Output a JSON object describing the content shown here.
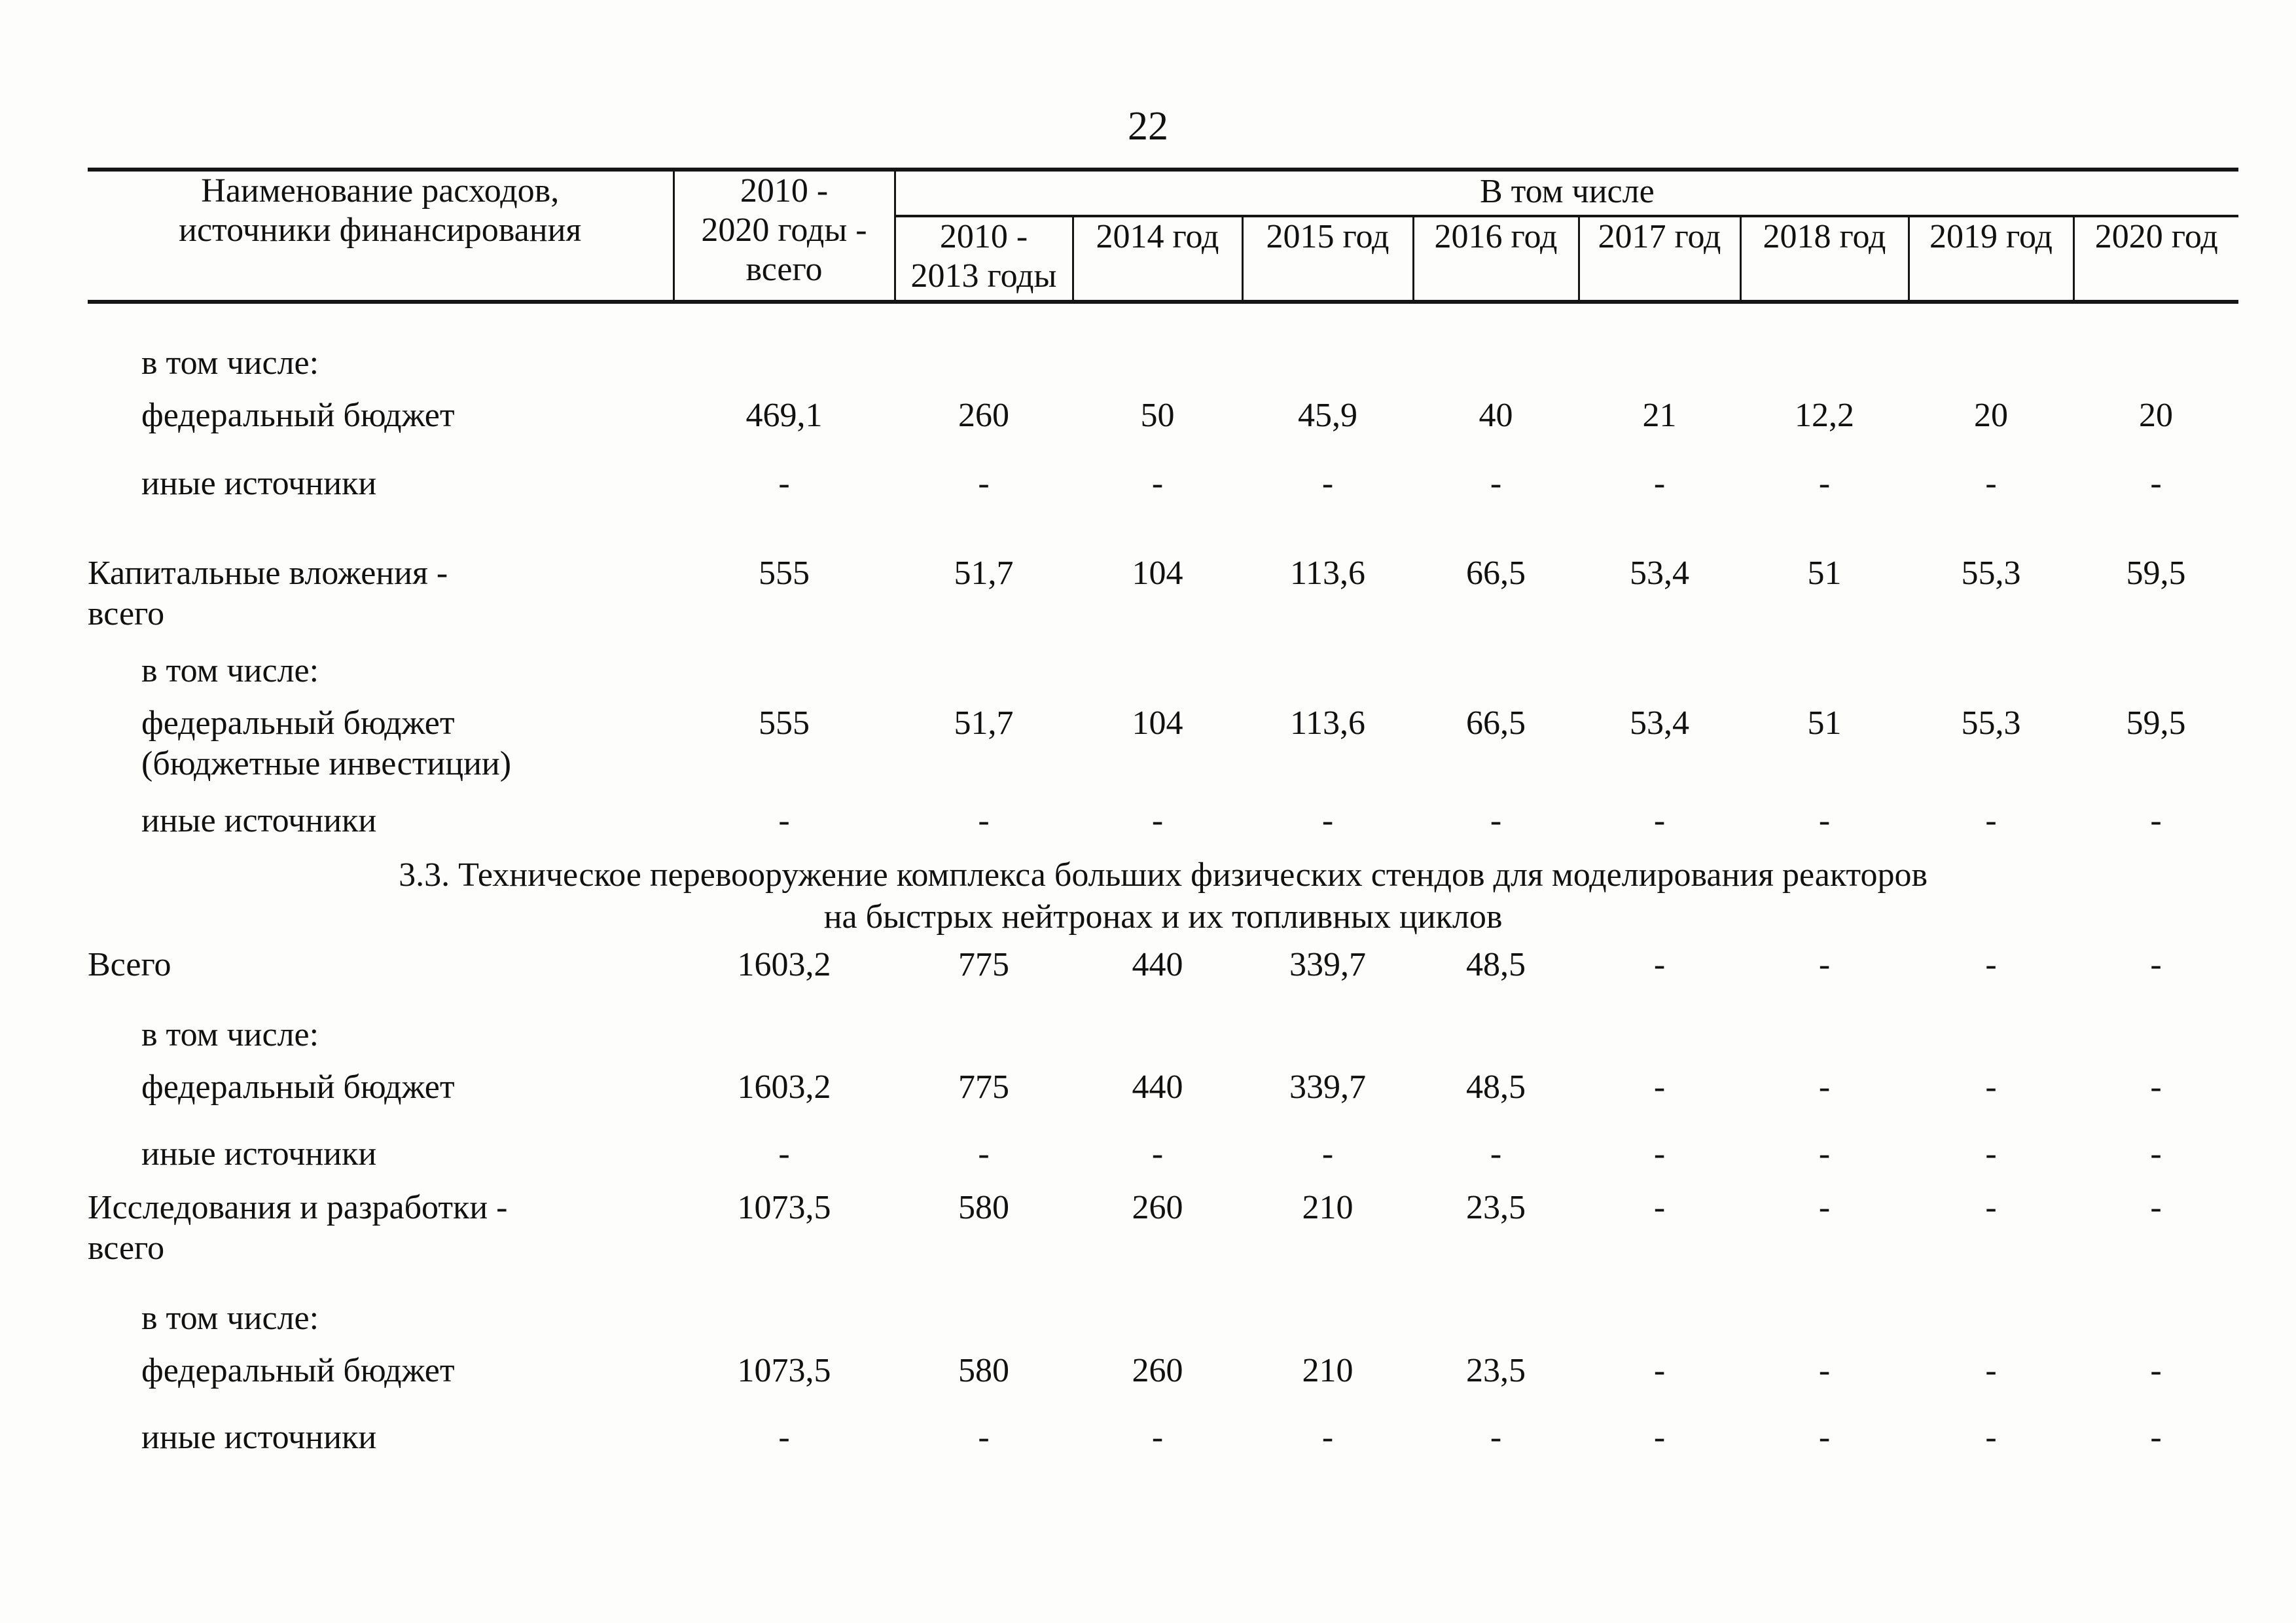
{
  "page": {
    "number": "22"
  },
  "table": {
    "header": {
      "name_col": [
        "Наименование расходов,",
        "источники финансирования"
      ],
      "total_col": [
        "2010 -",
        "2020 годы -",
        "всего"
      ],
      "group_label": "В том числе",
      "year_cols": [
        {
          "lines": [
            "2010 -",
            "2013 годы"
          ]
        },
        {
          "lines": [
            "2014 год"
          ]
        },
        {
          "lines": [
            "2015 год"
          ]
        },
        {
          "lines": [
            "2016 год"
          ]
        },
        {
          "lines": [
            "2017 год"
          ]
        },
        {
          "lines": [
            "2018 год"
          ]
        },
        {
          "lines": [
            "2019 год"
          ]
        },
        {
          "lines": [
            "2020 год"
          ]
        }
      ]
    },
    "rows": [
      {
        "type": "label",
        "indent": 1,
        "lines": [
          "в том числе:"
        ],
        "values": []
      },
      {
        "type": "data",
        "indent": 1,
        "lines": [
          "федеральный бюджет"
        ],
        "values": [
          "469,1",
          "260",
          "50",
          "45,9",
          "40",
          "21",
          "12,2",
          "20",
          "20"
        ]
      },
      {
        "type": "data",
        "indent": 1,
        "lines": [
          "иные источники"
        ],
        "values": [
          "-",
          "-",
          "-",
          "-",
          "-",
          "-",
          "-",
          "-",
          "-"
        ]
      },
      {
        "type": "data",
        "indent": 0,
        "lines": [
          "Капитальные вложения -",
          "всего"
        ],
        "values": [
          "555",
          "51,7",
          "104",
          "113,6",
          "66,5",
          "53,4",
          "51",
          "55,3",
          "59,5"
        ]
      },
      {
        "type": "label",
        "indent": 1,
        "lines": [
          "в том числе:"
        ],
        "values": []
      },
      {
        "type": "data",
        "indent": 1,
        "lines": [
          "федеральный бюджет",
          "(бюджетные инвестиции)"
        ],
        "values": [
          "555",
          "51,7",
          "104",
          "113,6",
          "66,5",
          "53,4",
          "51",
          "55,3",
          "59,5"
        ]
      },
      {
        "type": "data",
        "indent": 1,
        "lines": [
          "иные источники"
        ],
        "values": [
          "-",
          "-",
          "-",
          "-",
          "-",
          "-",
          "-",
          "-",
          "-"
        ]
      },
      {
        "type": "section",
        "lines": [
          "3.3. Техническое перевооружение комплекса больших физических стендов для моделирования реакторов",
          "на быстрых нейтронах и их топливных циклов"
        ],
        "values": []
      },
      {
        "type": "data",
        "indent": 0,
        "lines": [
          "Всего"
        ],
        "values": [
          "1603,2",
          "775",
          "440",
          "339,7",
          "48,5",
          "-",
          "-",
          "-",
          "-"
        ]
      },
      {
        "type": "label",
        "indent": 1,
        "lines": [
          "в том числе:"
        ],
        "values": []
      },
      {
        "type": "data",
        "indent": 1,
        "lines": [
          "федеральный бюджет"
        ],
        "values": [
          "1603,2",
          "775",
          "440",
          "339,7",
          "48,5",
          "-",
          "-",
          "-",
          "-"
        ]
      },
      {
        "type": "data",
        "indent": 1,
        "lines": [
          "иные источники"
        ],
        "values": [
          "-",
          "-",
          "-",
          "-",
          "-",
          "-",
          "-",
          "-",
          "-"
        ]
      },
      {
        "type": "data",
        "indent": 0,
        "lines": [
          "Исследования и разработки -",
          "всего"
        ],
        "values": [
          "1073,5",
          "580",
          "260",
          "210",
          "23,5",
          "-",
          "-",
          "-",
          "-"
        ]
      },
      {
        "type": "label",
        "indent": 1,
        "lines": [
          "в том числе:"
        ],
        "values": []
      },
      {
        "type": "data",
        "indent": 1,
        "lines": [
          "федеральный бюджет"
        ],
        "values": [
          "1073,5",
          "580",
          "260",
          "210",
          "23,5",
          "-",
          "-",
          "-",
          "-"
        ]
      },
      {
        "type": "data",
        "indent": 1,
        "lines": [
          "иные источники"
        ],
        "values": [
          "-",
          "-",
          "-",
          "-",
          "-",
          "-",
          "-",
          "-",
          "-"
        ]
      }
    ]
  }
}
